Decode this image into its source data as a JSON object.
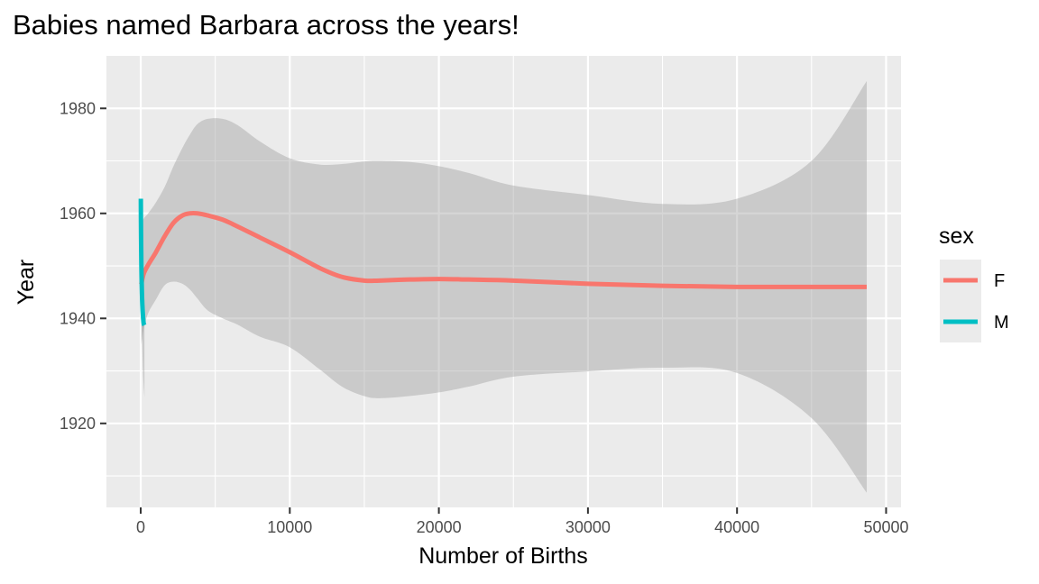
{
  "chart_data": {
    "type": "line",
    "title": "Babies named Barbara across the years!",
    "xlabel": "Number of Births",
    "ylabel": "Year",
    "xlim": [
      -2300,
      51000
    ],
    "ylim": [
      1904,
      1990
    ],
    "x_ticks": [
      0,
      10000,
      20000,
      30000,
      40000,
      50000
    ],
    "x_tick_labels": [
      "0",
      "10000",
      "20000",
      "30000",
      "40000",
      "50000"
    ],
    "x_minor_ticks": [
      5000,
      15000,
      25000,
      35000,
      45000
    ],
    "y_ticks": [
      1920,
      1940,
      1960,
      1980
    ],
    "y_tick_labels": [
      "1920",
      "1940",
      "1960",
      "1980"
    ],
    "y_minor_ticks": [
      1910,
      1930,
      1950,
      1970
    ],
    "grid": true,
    "legend": {
      "title": "sex",
      "position": "right",
      "entries": [
        {
          "label": "F",
          "color": "#F8766D"
        },
        {
          "label": "M",
          "color": "#00BFC4"
        }
      ]
    },
    "series": [
      {
        "name": "F",
        "color": "#F8766D",
        "x": [
          40,
          200,
          500,
          1000,
          1600,
          2200,
          2800,
          3300,
          3800,
          4500,
          5500,
          6500,
          8000,
          10000,
          12000,
          13500,
          15000,
          16000,
          18000,
          20000,
          22000,
          25000,
          30000,
          35000,
          40000,
          45000,
          48700
        ],
        "y": [
          1946.5,
          1948.5,
          1950.2,
          1952.5,
          1955.6,
          1958.2,
          1959.6,
          1960.0,
          1960.0,
          1959.6,
          1958.8,
          1957.5,
          1955.4,
          1952.6,
          1949.6,
          1947.9,
          1947.2,
          1947.2,
          1947.4,
          1947.5,
          1947.4,
          1947.2,
          1946.6,
          1946.2,
          1946.0,
          1946.0,
          1946.0
        ],
        "ci_upper": [
          1958.0,
          1959.0,
          1960.0,
          1962.0,
          1965.0,
          1969.0,
          1972.5,
          1975.0,
          1977.0,
          1978.0,
          1978.0,
          1976.8,
          1973.7,
          1970.5,
          1969.3,
          1969.4,
          1969.9,
          1970.0,
          1969.8,
          1969.0,
          1967.7,
          1965.3,
          1963.5,
          1961.8,
          1962.8,
          1970.0,
          1985.2
        ],
        "ci_lower": [
          1935.0,
          1938.0,
          1941.0,
          1943.5,
          1946.3,
          1947.0,
          1946.6,
          1945.5,
          1943.8,
          1941.5,
          1940.0,
          1938.8,
          1936.5,
          1934.5,
          1930.3,
          1927.0,
          1925.2,
          1924.8,
          1925.2,
          1925.9,
          1927.0,
          1928.9,
          1929.9,
          1930.6,
          1929.6,
          1921.0,
          1906.8
        ]
      },
      {
        "name": "M",
        "color": "#00BFC4",
        "x": [
          8,
          12,
          18,
          25,
          35,
          45,
          60,
          80,
          110,
          150,
          200,
          250
        ],
        "y": [
          1962.8,
          1960.0,
          1957.5,
          1955.0,
          1952.5,
          1950.0,
          1947.5,
          1945.0,
          1942.5,
          1940.5,
          1939.0,
          1938.7
        ],
        "ci_upper": [
          1972.0,
          1969.0,
          1966.0,
          1963.0,
          1960.0,
          1957.0,
          1954.0,
          1951.0,
          1948.0,
          1945.5,
          1944.0,
          1943.5
        ],
        "ci_lower": [
          1953.0,
          1951.0,
          1949.0,
          1947.0,
          1945.0,
          1943.0,
          1940.0,
          1937.0,
          1934.0,
          1930.0,
          1927.0,
          1925.0
        ]
      }
    ]
  }
}
